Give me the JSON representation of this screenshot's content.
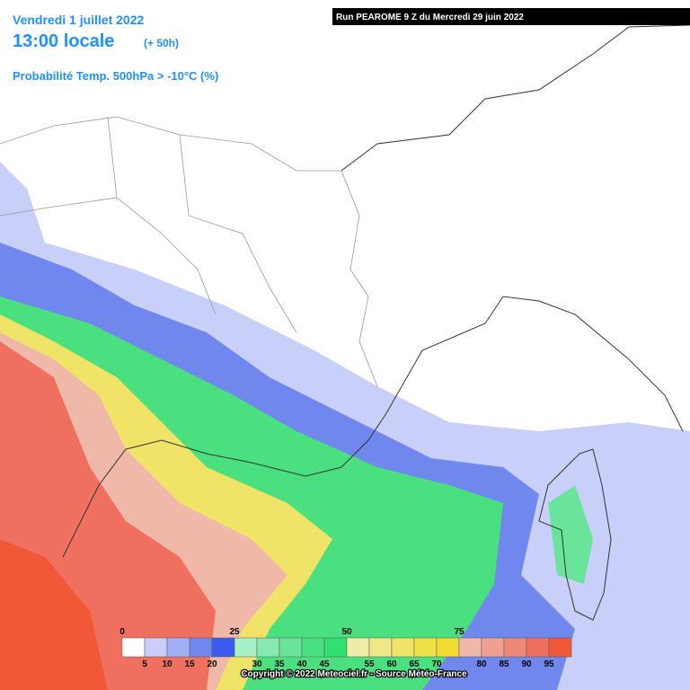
{
  "header": {
    "date": "Vendredi 1 juillet 2022",
    "time": "13:00 locale",
    "lead": "(+ 50h)",
    "parameter": "Probabilité Temp. 500hPa > -10°C (%)",
    "run": "Run PEAROME 9 Z du Mercredi 29 juin 2022"
  },
  "legend": {
    "colors": [
      "#ffffff",
      "#c8d0fa",
      "#a0b0f5",
      "#7088ee",
      "#3c5af0",
      "#a8f0c8",
      "#88eab0",
      "#6ae49a",
      "#4ae080",
      "#30e070",
      "#f0eca8",
      "#f0e888",
      "#f0e468",
      "#f0e048",
      "#f0dc30",
      "#f0b8a8",
      "#f0a090",
      "#f08878",
      "#f07060",
      "#f05838"
    ],
    "ticks": [
      0,
      5,
      10,
      15,
      20,
      25,
      30,
      35,
      40,
      45,
      50,
      55,
      60,
      65,
      70,
      75,
      80,
      85,
      90,
      95
    ]
  },
  "footer": {
    "copyright": "Copyright © 2022 Meteociel.fr - Source Météo-France"
  }
}
